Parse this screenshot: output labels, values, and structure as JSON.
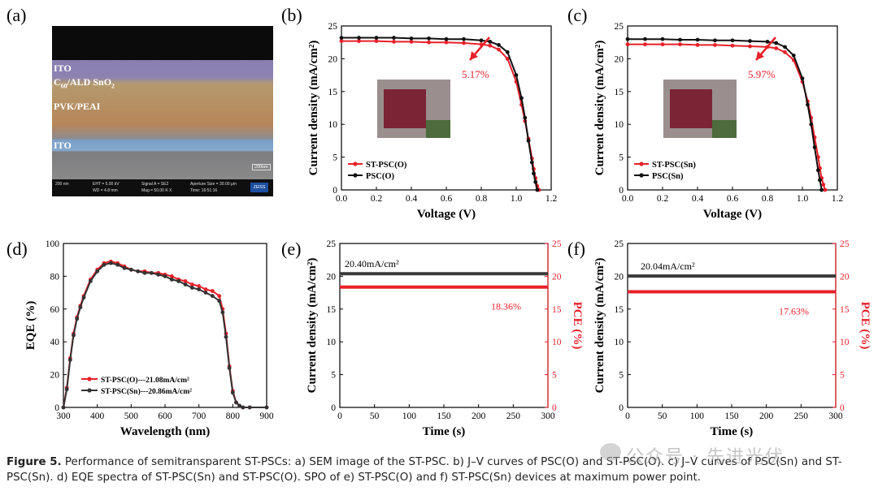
{
  "panel_labels": {
    "a": "(a)",
    "b": "(b)",
    "c": "(c)",
    "d": "(d)",
    "e": "(e)",
    "f": "(f)"
  },
  "sem": {
    "layer_ito_top": "ITO",
    "layer_c60_main": "C",
    "layer_c60_sub": "60",
    "layer_c60_rest": "/ALD SnO",
    "layer_c60_sub2": "2",
    "layer_pvk": "PVK/PEAI",
    "layer_ito_bottom": "ITO",
    "scale": "200nm",
    "info_scale": "200 nm",
    "info_eht": "EHT = 5.00 kV",
    "info_wd": "WD = 4.8 mm",
    "info_signal": "Signal A = SE2",
    "info_mag": "Mag = 50.00 K X",
    "info_aperture": "Aperture Size = 30.00 µm",
    "info_time": "Time: 16:51:16",
    "brand": "ZEISS"
  },
  "chart_data": [
    {
      "id": "b",
      "type": "line",
      "xlabel": "Voltage (V)",
      "ylabel": "Current density (mA/cm²)",
      "xlim": [
        0,
        1.2
      ],
      "ylim": [
        0,
        25
      ],
      "xticks": [
        "0.0",
        "0.2",
        "0.4",
        "0.6",
        "0.8",
        "1.0",
        "1.2"
      ],
      "yticks": [
        "0",
        "5",
        "10",
        "15",
        "20",
        "25"
      ],
      "annotation": "5.17%",
      "legend": [
        "ST-PSC(O)",
        "PSC(O)"
      ],
      "series": [
        {
          "name": "ST-PSC(O)",
          "color": "#e8202a",
          "x": [
            0,
            0.1,
            0.2,
            0.3,
            0.4,
            0.5,
            0.6,
            0.7,
            0.8,
            0.85,
            0.9,
            0.95,
            1.0,
            1.03,
            1.05,
            1.07,
            1.09,
            1.1,
            1.11,
            1.12,
            1.13
          ],
          "y": [
            22.7,
            22.7,
            22.7,
            22.6,
            22.6,
            22.5,
            22.5,
            22.4,
            22.2,
            22.0,
            21.4,
            20.0,
            16.5,
            13.0,
            10.5,
            7.8,
            4.8,
            3.2,
            1.8,
            0.6,
            0
          ]
        },
        {
          "name": "PSC(O)",
          "color": "#111111",
          "x": [
            0,
            0.1,
            0.2,
            0.3,
            0.4,
            0.5,
            0.6,
            0.7,
            0.8,
            0.85,
            0.9,
            0.95,
            1.0,
            1.03,
            1.05,
            1.07,
            1.09,
            1.1,
            1.11,
            1.12
          ],
          "y": [
            23.2,
            23.2,
            23.2,
            23.2,
            23.1,
            23.1,
            23.0,
            23.0,
            22.8,
            22.6,
            22.1,
            21.0,
            17.5,
            14.0,
            11.0,
            7.5,
            4.2,
            2.5,
            1.2,
            0
          ]
        }
      ]
    },
    {
      "id": "c",
      "type": "line",
      "xlabel": "Voltage (V)",
      "ylabel": "Current density (mA/cm²)",
      "xlim": [
        0,
        1.2
      ],
      "ylim": [
        0,
        25
      ],
      "xticks": [
        "0.0",
        "0.2",
        "0.4",
        "0.6",
        "0.8",
        "1.0",
        "1.2"
      ],
      "yticks": [
        "0",
        "5",
        "10",
        "15",
        "20",
        "25"
      ],
      "annotation": "5.97%",
      "legend": [
        "ST-PSC(Sn)",
        "PSC(Sn)"
      ],
      "series": [
        {
          "name": "ST-PSC(Sn)",
          "color": "#e8202a",
          "x": [
            0,
            0.1,
            0.2,
            0.3,
            0.4,
            0.5,
            0.6,
            0.7,
            0.8,
            0.85,
            0.9,
            0.95,
            1.0,
            1.03,
            1.05,
            1.07,
            1.09,
            1.1,
            1.11,
            1.12,
            1.13
          ],
          "y": [
            22.2,
            22.2,
            22.2,
            22.2,
            22.1,
            22.1,
            22.0,
            21.9,
            21.8,
            21.6,
            21.0,
            19.8,
            16.5,
            13.5,
            11.0,
            8.0,
            5.0,
            3.3,
            1.8,
            0.8,
            0
          ]
        },
        {
          "name": "PSC(Sn)",
          "color": "#111111",
          "x": [
            0,
            0.1,
            0.2,
            0.3,
            0.4,
            0.5,
            0.6,
            0.7,
            0.8,
            0.85,
            0.9,
            0.95,
            1.0,
            1.03,
            1.05,
            1.07,
            1.09,
            1.1,
            1.11
          ],
          "y": [
            23.0,
            23.0,
            23.0,
            22.9,
            22.9,
            22.8,
            22.8,
            22.7,
            22.6,
            22.4,
            21.8,
            20.5,
            17.0,
            13.0,
            10.0,
            6.5,
            3.0,
            1.5,
            0
          ]
        }
      ]
    },
    {
      "id": "d",
      "type": "line",
      "xlabel": "Wavelength (nm)",
      "ylabel": "EQE (%)",
      "xlim": [
        300,
        900
      ],
      "ylim": [
        0,
        100
      ],
      "xticks": [
        "300",
        "400",
        "500",
        "600",
        "700",
        "800",
        "900"
      ],
      "yticks": [
        "0",
        "20",
        "40",
        "60",
        "80",
        "100"
      ],
      "legend": [
        "ST-PSC(O)---21.08mA/cm²",
        "ST-PSC(Sn)---20.86mA/cm²"
      ],
      "series": [
        {
          "name": "ST-PSC(O)---21.08mA/cm²",
          "color": "#e8202a",
          "x": [
            300,
            310,
            320,
            330,
            340,
            350,
            360,
            380,
            400,
            420,
            440,
            460,
            480,
            500,
            520,
            540,
            560,
            580,
            600,
            620,
            640,
            660,
            680,
            700,
            720,
            740,
            760,
            770,
            780,
            790,
            800,
            810,
            820,
            830,
            850,
            900
          ],
          "y": [
            0,
            12,
            30,
            45,
            55,
            62,
            68,
            78,
            84,
            88,
            89,
            88,
            86,
            84,
            83,
            83,
            82,
            82,
            81,
            80,
            78,
            77,
            75,
            74,
            72,
            71,
            68,
            60,
            45,
            25,
            10,
            3,
            1,
            0,
            0,
            0
          ]
        },
        {
          "name": "ST-PSC(Sn)---20.86mA/cm²",
          "color": "#333333",
          "x": [
            300,
            310,
            320,
            330,
            340,
            350,
            360,
            380,
            400,
            420,
            440,
            460,
            480,
            500,
            520,
            540,
            560,
            580,
            600,
            620,
            640,
            660,
            680,
            700,
            720,
            740,
            760,
            770,
            780,
            790,
            800,
            810,
            820,
            830,
            850,
            900
          ],
          "y": [
            0,
            11,
            29,
            44,
            54,
            61,
            67,
            77,
            83,
            87,
            88,
            87,
            85,
            84,
            83,
            82,
            82,
            81,
            80,
            78,
            77,
            75,
            73,
            72,
            70,
            68,
            65,
            58,
            43,
            24,
            9,
            3,
            1,
            0,
            0,
            0
          ]
        }
      ]
    },
    {
      "id": "e",
      "type": "line",
      "xlabel": "Time (s)",
      "ylabel": "Current density (mA/cm²)",
      "ylabel_right": "PCE (%)",
      "xlim": [
        0,
        300
      ],
      "ylim": [
        0,
        25
      ],
      "ylim_right": [
        0,
        25
      ],
      "xticks": [
        "0",
        "50",
        "100",
        "150",
        "200",
        "250",
        "300"
      ],
      "yticks": [
        "0",
        "5",
        "10",
        "15",
        "20",
        "25"
      ],
      "yticks_right": [
        "0",
        "5",
        "10",
        "15",
        "20",
        "25"
      ],
      "annotations": {
        "current": "20.40mA/cm²",
        "pce": "18.36%"
      },
      "series": [
        {
          "name": "current",
          "color": "#3a3a3a",
          "x": [
            0,
            300
          ],
          "y": [
            20.4,
            20.4
          ]
        },
        {
          "name": "pce",
          "color": "#e8202a",
          "x": [
            0,
            300
          ],
          "y": [
            18.36,
            18.36
          ]
        }
      ]
    },
    {
      "id": "f",
      "type": "line",
      "xlabel": "Time (s)",
      "ylabel": "Current density (mA/cm²)",
      "ylabel_right": "PCE (%)",
      "xlim": [
        0,
        300
      ],
      "ylim": [
        0,
        25
      ],
      "ylim_right": [
        0,
        25
      ],
      "xticks": [
        "0",
        "50",
        "100",
        "150",
        "200",
        "250",
        "300"
      ],
      "yticks": [
        "0",
        "5",
        "10",
        "15",
        "20",
        "25"
      ],
      "yticks_right": [
        "0",
        "5",
        "10",
        "15",
        "20",
        "25"
      ],
      "annotations": {
        "current": "20.04mA/cm²",
        "pce": "17.63%"
      },
      "series": [
        {
          "name": "current",
          "color": "#3a3a3a",
          "x": [
            0,
            300
          ],
          "y": [
            20.04,
            20.04
          ]
        },
        {
          "name": "pce",
          "color": "#e8202a",
          "x": [
            0,
            300
          ],
          "y": [
            17.63,
            17.63
          ]
        }
      ]
    }
  ],
  "caption": {
    "label": "Figure 5.",
    "text": " Performance of semitransparent ST-PSCs: a) SEM image of the ST-PSC. b) J–V curves of PSC(O) and ST-PSC(O). c) J–V curves of PSC(Sn) and ST-PSC(Sn). d) EQE spectra of ST-PSC(Sn) and ST-PSC(O). SPO of e) ST-PSC(O) and f) ST-PSC(Sn) devices at maximum power point."
  },
  "watermark": "公众号 · 先进光伏"
}
